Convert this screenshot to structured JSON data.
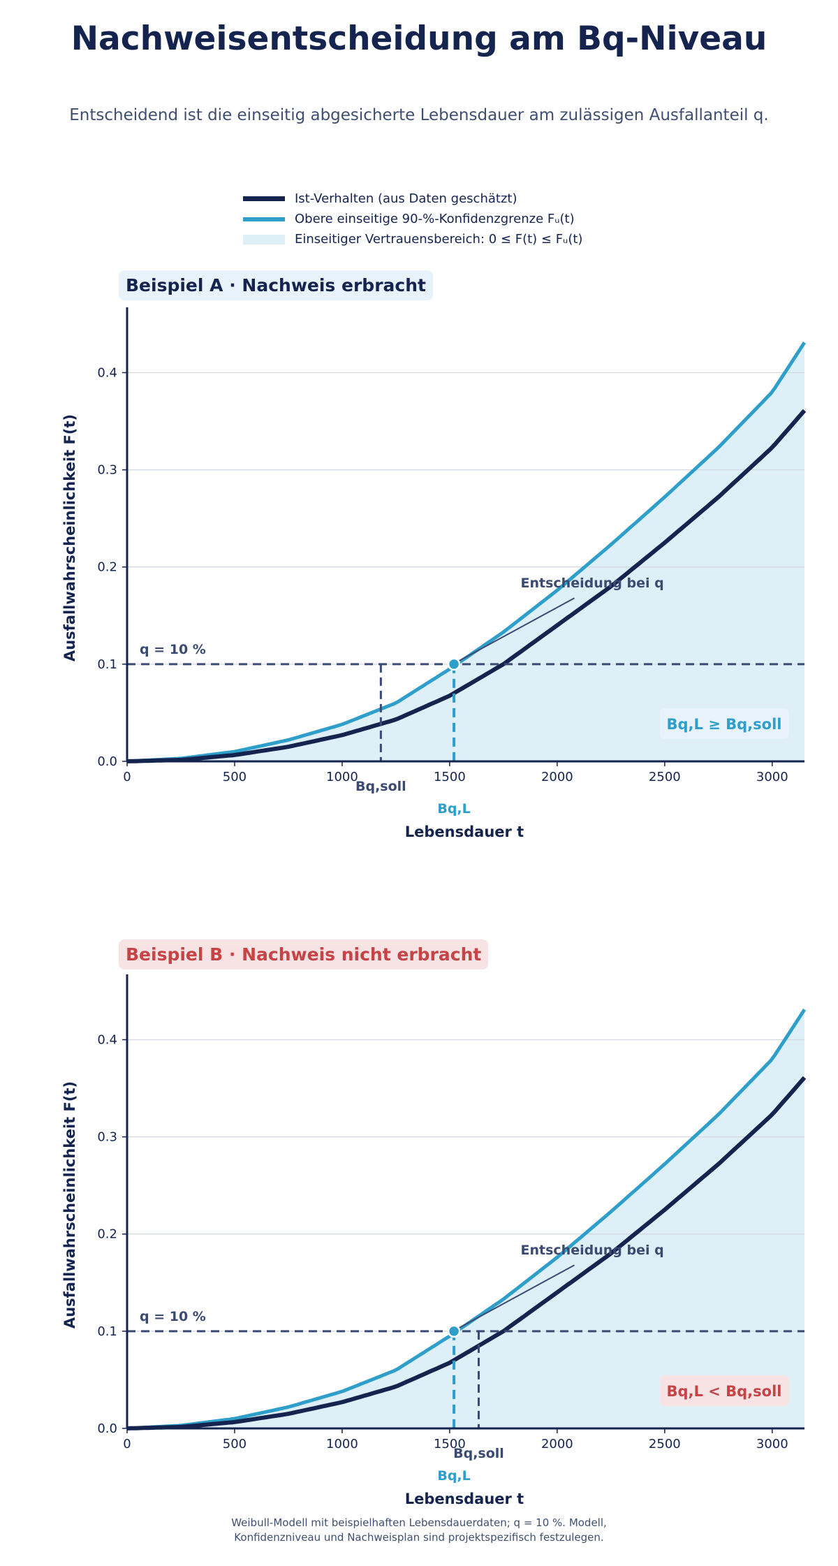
{
  "title": "Nachweisentscheidung am Bq-Niveau",
  "subtitle": "Entscheidend ist die einseitig abgesicherte Lebensdauer am zulässigen Ausfallanteil q.",
  "legend": {
    "estimate": "Ist-Verhalten (aus Daten geschätzt)",
    "upper": "Obere einseitige 90-%-Konfidenzgrenze Fᵤ(t)",
    "band": "Einseitiger Vertrauensbereich: 0 ≤ F(t) ≤ Fᵤ(t)"
  },
  "panels": [
    {
      "badge": "Beispiel A · Nachweis erbracht",
      "verdict": "Bq,L ≥ Bq,soll",
      "bqsoll": 1180
    },
    {
      "badge": "Beispiel B · Nachweis nicht erbracht",
      "verdict": "Bq,L < Bq,soll",
      "bqsoll": 1635
    }
  ],
  "footnote": {
    "line1": "Weibull-Modell mit beispielhaften Lebensdauerdaten; q = 10 %. Modell,",
    "line2": "Konfidenzniveau und Nachweisplan sind projektspezifisch festzulegen."
  },
  "colors": {
    "navy": "#14244f",
    "cyan": "#2e9fcb",
    "band": "#dfeff8",
    "red": "#c64446",
    "slate": "#3f4f72"
  },
  "chart_data": [
    {
      "type": "line",
      "title": "Beispiel A · Nachweis erbracht",
      "xlabel": "Lebensdauer t",
      "ylabel": "Ausfallwahrscheinlichkeit F(t)",
      "xlim": [
        0,
        3150
      ],
      "ylim": [
        0,
        0.46
      ],
      "xticks": [
        0,
        500,
        1000,
        1500,
        2000,
        2500,
        3000
      ],
      "yticks": [
        "0.0",
        "0.1",
        "0.2",
        "0.3",
        "0.4"
      ],
      "grid": "horizontal",
      "series": [
        {
          "name": "Ist-Verhalten (aus Daten geschätzt)",
          "x": [
            0,
            250,
            500,
            750,
            1000,
            1250,
            1500,
            1750,
            2000,
            2250,
            2500,
            2750,
            3000,
            3150
          ],
          "y": [
            0,
            0.0015,
            0.0065,
            0.015,
            0.027,
            0.043,
            0.0675,
            0.1,
            0.14,
            0.18,
            0.225,
            0.272,
            0.323,
            0.361
          ]
        },
        {
          "name": "Obere einseitige 90-%-Konfidenzgrenze Fᵤ(t)",
          "x": [
            0,
            250,
            500,
            750,
            1000,
            1250,
            1500,
            1750,
            2000,
            2250,
            2500,
            2750,
            3000,
            3150
          ],
          "y": [
            0,
            0.003,
            0.01,
            0.022,
            0.038,
            0.06,
            0.095,
            0.133,
            0.176,
            0.223,
            0.272,
            0.323,
            0.38,
            0.431
          ]
        }
      ],
      "q_level": 0.1,
      "q_label": "q = 10 %",
      "bqsoll_x": 1180,
      "bqsoll_label": "Bq,soll",
      "bql_x": 1520,
      "bql_label": "Bq,L",
      "annotation": "Entscheidung bei q",
      "verdict": "Bq,L ≥ Bq,soll"
    },
    {
      "type": "line",
      "title": "Beispiel B · Nachweis nicht erbracht",
      "xlabel": "Lebensdauer t",
      "ylabel": "Ausfallwahrscheinlichkeit F(t)",
      "xlim": [
        0,
        3150
      ],
      "ylim": [
        0,
        0.46
      ],
      "xticks": [
        0,
        500,
        1000,
        1500,
        2000,
        2500,
        3000
      ],
      "yticks": [
        "0.0",
        "0.1",
        "0.2",
        "0.3",
        "0.4"
      ],
      "grid": "horizontal",
      "series": [
        {
          "name": "Ist-Verhalten (aus Daten geschätzt)",
          "x": [
            0,
            250,
            500,
            750,
            1000,
            1250,
            1500,
            1750,
            2000,
            2250,
            2500,
            2750,
            3000,
            3150
          ],
          "y": [
            0,
            0.0015,
            0.0065,
            0.015,
            0.027,
            0.043,
            0.0675,
            0.1,
            0.14,
            0.18,
            0.225,
            0.272,
            0.323,
            0.361
          ]
        },
        {
          "name": "Obere einseitige 90-%-Konfidenzgrenze Fᵤ(t)",
          "x": [
            0,
            250,
            500,
            750,
            1000,
            1250,
            1500,
            1750,
            2000,
            2250,
            2500,
            2750,
            3000,
            3150
          ],
          "y": [
            0,
            0.003,
            0.01,
            0.022,
            0.038,
            0.06,
            0.095,
            0.133,
            0.176,
            0.223,
            0.272,
            0.323,
            0.38,
            0.431
          ]
        }
      ],
      "q_level": 0.1,
      "q_label": "q = 10 %",
      "bqsoll_x": 1635,
      "bqsoll_label": "Bq,soll",
      "bql_x": 1520,
      "bql_label": "Bq,L",
      "annotation": "Entscheidung bei q",
      "verdict": "Bq,L < Bq,soll"
    }
  ]
}
